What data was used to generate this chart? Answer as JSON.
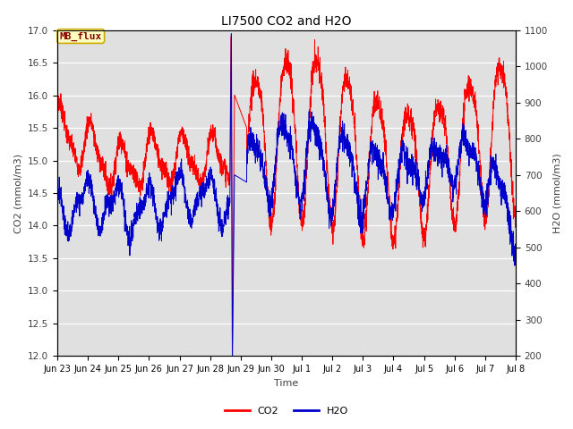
{
  "title": "LI7500 CO2 and H2O",
  "xlabel": "Time",
  "ylabel_left": "CO2 (mmol/m3)",
  "ylabel_right": "H2O (mmol/m3)",
  "ylim_left": [
    12.0,
    17.0
  ],
  "ylim_right": [
    200,
    1100
  ],
  "legend_label1": "CO2",
  "legend_label2": "H2O",
  "color_co2": "#FF0000",
  "color_h2o": "#0000CC",
  "linewidth": 0.7,
  "text_box_label": "MB_flux",
  "text_box_color": "#FFFFC0",
  "text_box_border": "#CCAA00",
  "text_box_text_color": "#880000",
  "bg_color": "#E0E0E0",
  "title_fontsize": 10,
  "label_fontsize": 8,
  "tick_fontsize": 7.5,
  "legend_fontsize": 8,
  "tick_label_color": "#404040",
  "axis_label_color": "#404040",
  "x_tick_labels": [
    "Jun 23",
    "Jun 24",
    "Jun 25",
    "Jun 26",
    "Jun 27",
    "Jun 28",
    "Jun 29",
    "Jun 30",
    "Jul 1",
    "Jul 2",
    "Jul 3",
    "Jul 4",
    "Jul 5",
    "Jul 6",
    "Jul 7",
    "Jul 8"
  ],
  "n_points": 3000
}
